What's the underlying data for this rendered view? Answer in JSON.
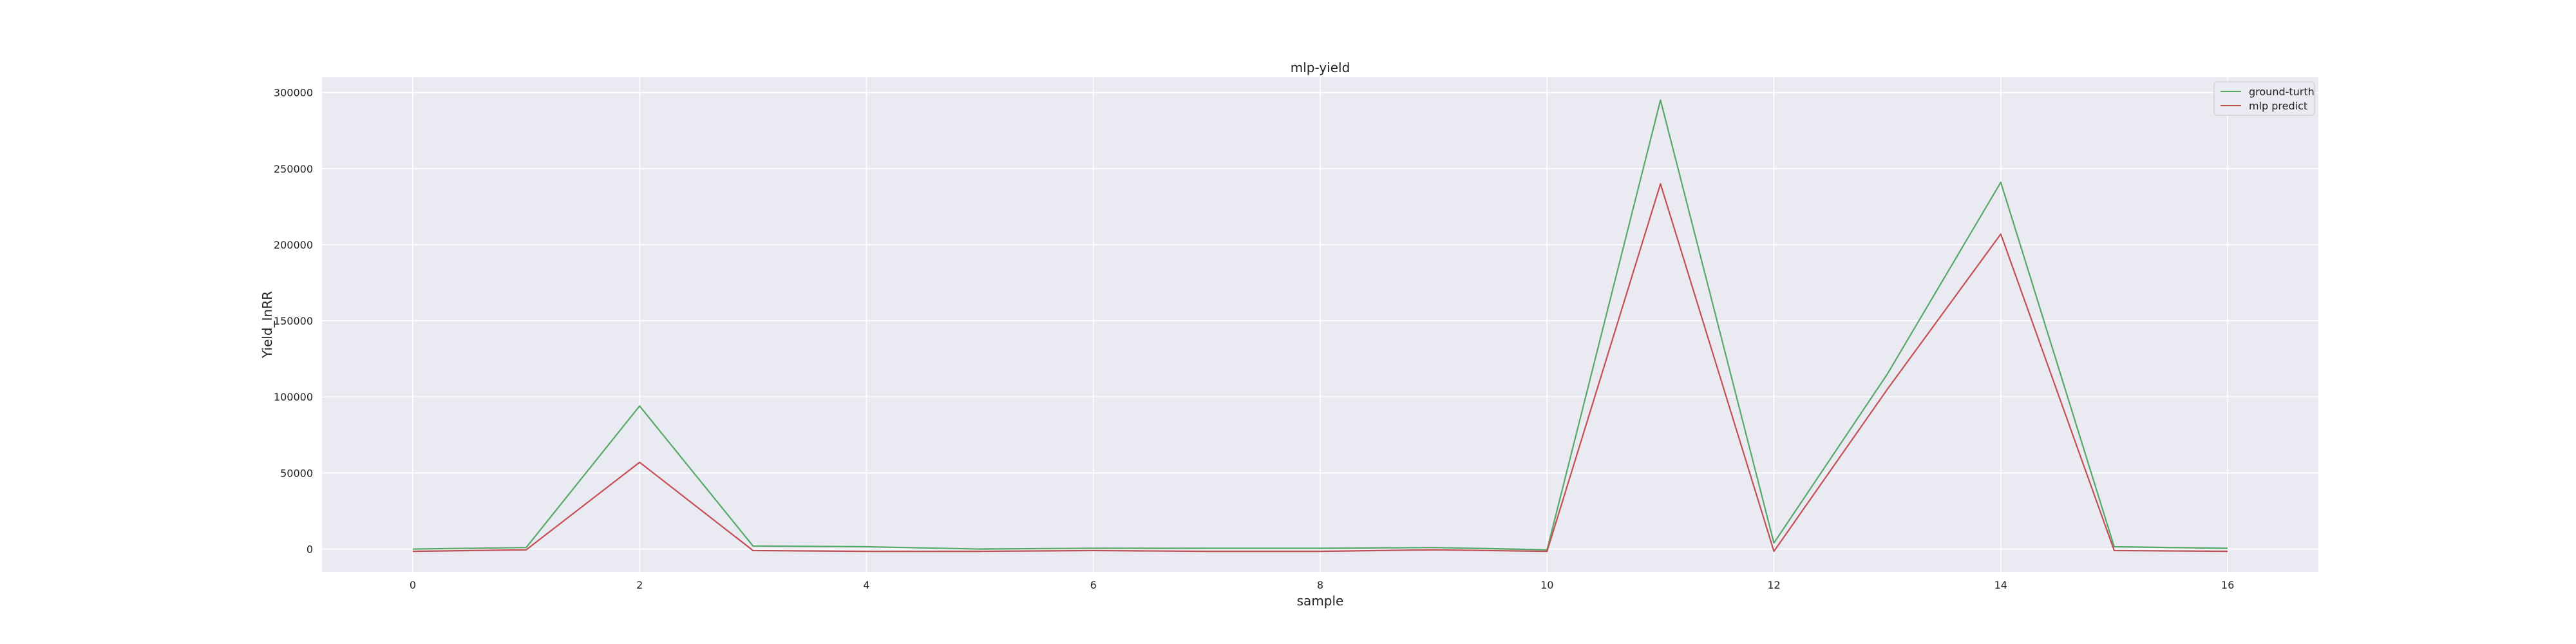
{
  "chart_data": {
    "type": "line",
    "title": "mlp-yield",
    "xlabel": "sample",
    "ylabel": "Yield_InRR",
    "x": [
      0,
      1,
      2,
      3,
      4,
      5,
      6,
      7,
      8,
      9,
      10,
      11,
      12,
      13,
      14,
      15,
      16
    ],
    "xticks": [
      0,
      2,
      4,
      6,
      8,
      10,
      12,
      14,
      16
    ],
    "yticks": [
      0,
      50000,
      100000,
      150000,
      200000,
      250000,
      300000
    ],
    "xlim": [
      -0.8,
      16.8
    ],
    "ylim": [
      -15000,
      310000
    ],
    "grid": true,
    "legend_position": "top-right",
    "background_color": "#eaeaf2",
    "series": [
      {
        "name": "ground-turth",
        "color": "#55a868",
        "values": [
          0,
          1000,
          94000,
          2000,
          1500,
          0,
          500,
          500,
          500,
          1000,
          -500,
          295000,
          4000,
          115000,
          241000,
          1500,
          500
        ]
      },
      {
        "name": "mlp predict",
        "color": "#c44e52",
        "values": [
          -1500,
          -500,
          57000,
          -1000,
          -1500,
          -1500,
          -1000,
          -1500,
          -1500,
          -500,
          -1500,
          240000,
          -1500,
          105000,
          207000,
          -1000,
          -1500
        ]
      }
    ]
  }
}
